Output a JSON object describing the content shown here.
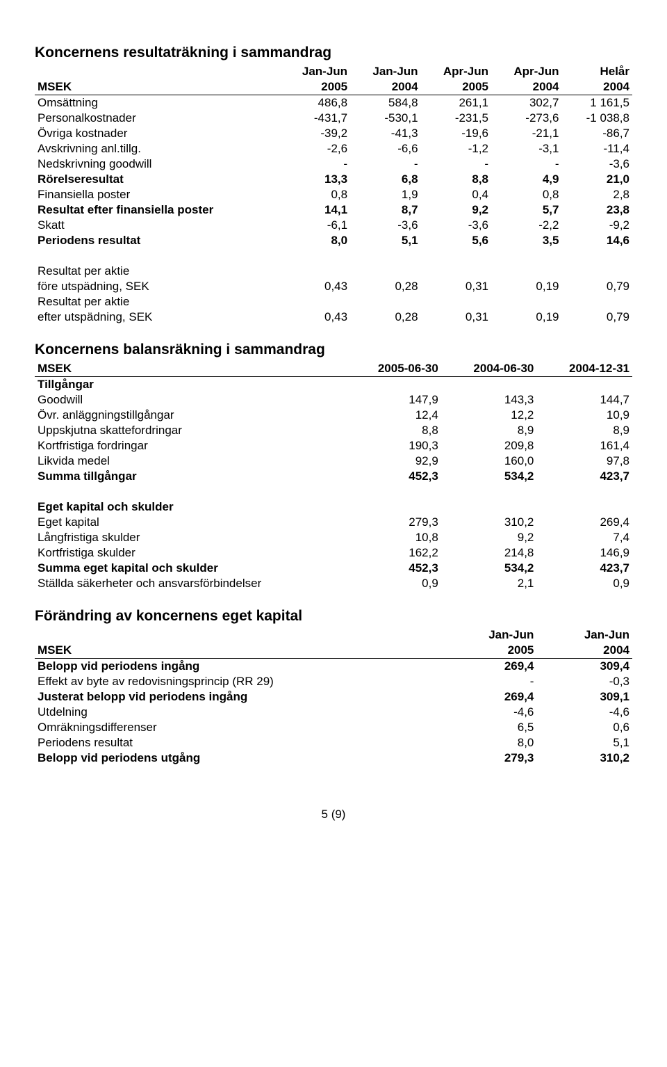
{
  "income": {
    "title": "Koncernens resultaträkning i sammandrag",
    "periods_top": [
      "Jan-Jun",
      "Jan-Jun",
      "Apr-Jun",
      "Apr-Jun",
      "Helår"
    ],
    "header_label": "MSEK",
    "periods_year": [
      "2005",
      "2004",
      "2005",
      "2004",
      "2004"
    ],
    "rows": [
      {
        "label": "Omsättning",
        "v": [
          "486,8",
          "584,8",
          "261,1",
          "302,7",
          "1 161,5"
        ]
      },
      {
        "label": "Personalkostnader",
        "v": [
          "-431,7",
          "-530,1",
          "-231,5",
          "-273,6",
          "-1 038,8"
        ]
      },
      {
        "label": "Övriga kostnader",
        "v": [
          "-39,2",
          "-41,3",
          "-19,6",
          "-21,1",
          "-86,7"
        ]
      },
      {
        "label": "Avskrivning anl.tillg.",
        "v": [
          "-2,6",
          "-6,6",
          "-1,2",
          "-3,1",
          "-11,4"
        ]
      },
      {
        "label": "Nedskrivning goodwill",
        "v": [
          "-",
          "-",
          "-",
          "-",
          "-3,6"
        ]
      },
      {
        "label": "Rörelseresultat",
        "v": [
          "13,3",
          "6,8",
          "8,8",
          "4,9",
          "21,0"
        ],
        "bold": true
      },
      {
        "label": "Finansiella poster",
        "v": [
          "0,8",
          "1,9",
          "0,4",
          "0,8",
          "2,8"
        ]
      },
      {
        "label": "Resultat efter finansiella poster",
        "v": [
          "14,1",
          "8,7",
          "9,2",
          "5,7",
          "23,8"
        ],
        "bold": true
      },
      {
        "label": "Skatt",
        "v": [
          "-6,1",
          "-3,6",
          "-3,6",
          "-2,2",
          "-9,2"
        ]
      },
      {
        "label": "Periodens resultat",
        "v": [
          "8,0",
          "5,1",
          "5,6",
          "3,5",
          "14,6"
        ],
        "bold": true
      }
    ],
    "eps": [
      {
        "label1": "Resultat per aktie",
        "label2": "före utspädning, SEK",
        "v": [
          "0,43",
          "0,28",
          "0,31",
          "0,19",
          "0,79"
        ]
      },
      {
        "label1": "Resultat per aktie",
        "label2": "efter utspädning, SEK",
        "v": [
          "0,43",
          "0,28",
          "0,31",
          "0,19",
          "0,79"
        ]
      }
    ]
  },
  "balance": {
    "title": "Koncernens balansräkning i sammandrag",
    "header_label": "MSEK",
    "dates": [
      "2005-06-30",
      "2004-06-30",
      "2004-12-31"
    ],
    "assets_label": "Tillgångar",
    "assets": [
      {
        "label": "Goodwill",
        "v": [
          "147,9",
          "143,3",
          "144,7"
        ]
      },
      {
        "label": "Övr. anläggningstillgångar",
        "v": [
          "12,4",
          "12,2",
          "10,9"
        ]
      },
      {
        "label": "Uppskjutna skattefordringar",
        "v": [
          "8,8",
          "8,9",
          "8,9"
        ]
      },
      {
        "label": "Kortfristiga fordringar",
        "v": [
          "190,3",
          "209,8",
          "161,4"
        ]
      },
      {
        "label": "Likvida medel",
        "v": [
          "92,9",
          "160,0",
          "97,8"
        ]
      },
      {
        "label": "Summa tillgångar",
        "v": [
          "452,3",
          "534,2",
          "423,7"
        ],
        "bold": true
      }
    ],
    "equity_label": "Eget kapital och skulder",
    "equity": [
      {
        "label": "Eget kapital",
        "v": [
          "279,3",
          "310,2",
          "269,4"
        ]
      },
      {
        "label": "Långfristiga skulder",
        "v": [
          "10,8",
          "9,2",
          "7,4"
        ]
      },
      {
        "label": "Kortfristiga skulder",
        "v": [
          "162,2",
          "214,8",
          "146,9"
        ]
      },
      {
        "label": "Summa eget kapital och skulder",
        "v": [
          "452,3",
          "534,2",
          "423,7"
        ],
        "bold": true
      },
      {
        "label": "Ställda säkerheter och ansvarsförbindelser",
        "v": [
          "0,9",
          "2,1",
          "0,9"
        ]
      }
    ]
  },
  "equity_change": {
    "title": "Förändring av koncernens eget kapital",
    "periods_top": [
      "Jan-Jun",
      "Jan-Jun"
    ],
    "header_label": "MSEK",
    "periods_year": [
      "2005",
      "2004"
    ],
    "rows": [
      {
        "label": "Belopp vid periodens ingång",
        "v": [
          "269,4",
          "309,4"
        ],
        "bold": true
      },
      {
        "label": "Effekt av byte av redovisningsprincip (RR 29)",
        "v": [
          "-",
          "-0,3"
        ]
      },
      {
        "label": "Justerat belopp vid periodens ingång",
        "v": [
          "269,4",
          "309,1"
        ],
        "bold": true
      },
      {
        "label": "Utdelning",
        "v": [
          "-4,6",
          "-4,6"
        ]
      },
      {
        "label": "Omräkningsdifferenser",
        "v": [
          "6,5",
          "0,6"
        ]
      },
      {
        "label": "Periodens resultat",
        "v": [
          "8,0",
          "5,1"
        ]
      },
      {
        "label": "Belopp vid periodens utgång",
        "v": [
          "279,3",
          "310,2"
        ],
        "bold": true
      }
    ]
  },
  "footer": "5 (9)"
}
